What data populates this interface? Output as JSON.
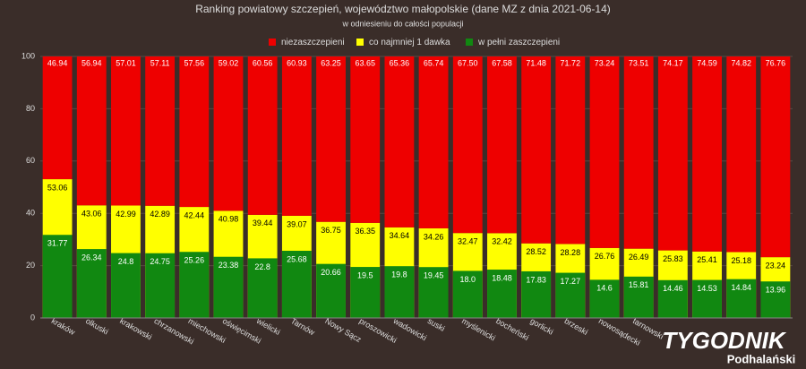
{
  "chart_data": {
    "type": "bar",
    "title": "Ranking powiatowy szczepień, województwo małopolskie (dane MZ z dnia 2021-06-14)",
    "subtitle": "w odniesieniu do całości populacji",
    "watermark": [
      "TYGODNIK",
      "Podhalański"
    ],
    "categories": [
      "kraków",
      "olkuski",
      "krakowski",
      "chrzanowski",
      "miechowski",
      "oświęcimski",
      "wielicki",
      "Tarnów",
      "Nowy Sącz",
      "proszowicki",
      "wadowicki",
      "suski",
      "myślenicki",
      "bocheński",
      "gorlicki",
      "brzeski",
      "nowosądecki",
      "tarnowski",
      null,
      null,
      null,
      null
    ],
    "series": [
      {
        "name": "niezaszczepieni",
        "color": "#ee0000",
        "values": [
          46.94,
          56.94,
          57.01,
          57.11,
          57.56,
          59.02,
          60.56,
          60.93,
          63.25,
          63.65,
          65.36,
          65.74,
          67.5,
          67.58,
          71.48,
          71.72,
          73.24,
          73.51,
          74.17,
          74.59,
          74.82,
          76.76
        ],
        "value_labels": [
          "46.94",
          "56.94",
          "57.01",
          "57.11",
          "57.56",
          "59.02",
          "60.56",
          "60.93",
          "63.25",
          "63.65",
          "65.36",
          "65.74",
          "67.50",
          "67.58",
          "71.48",
          "71.72",
          "73.24",
          "73.51",
          "74.17",
          "74.59",
          "74.82",
          "76.76"
        ]
      },
      {
        "name": "co najmniej 1 dawka",
        "color": "#ffff00",
        "values": [
          53.06,
          43.06,
          42.99,
          42.89,
          42.44,
          40.98,
          39.44,
          39.07,
          36.75,
          36.35,
          34.64,
          34.26,
          32.47,
          32.42,
          28.52,
          28.28,
          26.76,
          26.49,
          25.83,
          25.41,
          25.18,
          23.24
        ],
        "value_labels": [
          "53.06",
          "43.06",
          "42.99",
          "42.89",
          "42.44",
          "40.98",
          "39.44",
          "39.07",
          "36.75",
          "36.35",
          "34.64",
          "34.26",
          "32.47",
          "32.42",
          "28.52",
          "28.28",
          "26.76",
          "26.49",
          "25.83",
          "25.41",
          "25.18",
          "23.24"
        ]
      },
      {
        "name": "w pełni zaszczepieni",
        "color": "#118811",
        "values": [
          31.77,
          26.34,
          24.8,
          24.75,
          25.26,
          23.38,
          22.8,
          25.68,
          20.66,
          19.5,
          19.8,
          19.45,
          18.0,
          18.48,
          17.83,
          17.27,
          14.6,
          15.81,
          14.46,
          14.53,
          14.84,
          13.96
        ],
        "value_labels": [
          "31.77",
          "26.34",
          "24.8",
          "24.75",
          "25.26",
          "23.38",
          "22.8",
          "25.68",
          "20.66",
          "19.5",
          "19.8",
          "19.45",
          "18.0",
          "18.48",
          "17.83",
          "17.27",
          "14.6",
          "15.81",
          "14.46",
          "14.53",
          "14.84",
          "13.96"
        ]
      }
    ],
    "ylim": [
      0,
      100
    ],
    "yticks": [
      0,
      20,
      40,
      60,
      80,
      100
    ],
    "grid": true
  }
}
